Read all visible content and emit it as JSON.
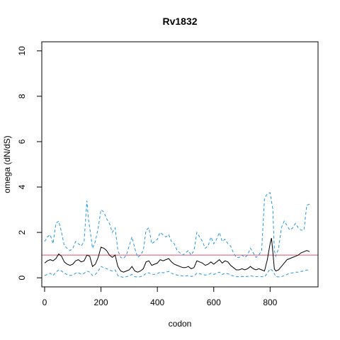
{
  "chart_data": {
    "type": "line",
    "title": "Rv1832",
    "xlabel": "codon",
    "ylabel": "omega (dN/dS)",
    "xlim": [
      -10,
      970
    ],
    "ylim": [
      -0.4,
      10.4
    ],
    "xticks": [
      0,
      200,
      400,
      600,
      800
    ],
    "yticks": [
      0,
      2,
      4,
      6,
      8,
      10
    ],
    "reference_line": {
      "y": 1,
      "color": "#DF536B"
    },
    "colors": {
      "estimate": "#000000",
      "interval": "#2297E6",
      "reference": "#DF536B"
    },
    "series": [
      {
        "style": "solid",
        "color": "#000000",
        "x": [
          0,
          10,
          20,
          30,
          40,
          50,
          60,
          70,
          80,
          90,
          100,
          110,
          120,
          130,
          140,
          150,
          160,
          170,
          180,
          190,
          200,
          210,
          220,
          230,
          240,
          250,
          260,
          270,
          280,
          290,
          300,
          310,
          320,
          330,
          340,
          350,
          360,
          370,
          380,
          390,
          400,
          410,
          420,
          430,
          440,
          450,
          460,
          470,
          480,
          490,
          500,
          510,
          520,
          530,
          540,
          550,
          560,
          570,
          580,
          590,
          600,
          610,
          620,
          630,
          640,
          650,
          660,
          670,
          680,
          690,
          700,
          710,
          720,
          730,
          740,
          750,
          760,
          770,
          780,
          790,
          800,
          805,
          810,
          815,
          820,
          830,
          840,
          850,
          860,
          870,
          880,
          890,
          900,
          910,
          920,
          930,
          940
        ],
        "values": [
          0.65,
          0.75,
          0.8,
          0.75,
          0.85,
          1.05,
          0.95,
          0.7,
          0.6,
          0.55,
          0.6,
          0.75,
          0.8,
          0.7,
          0.75,
          1.0,
          0.95,
          0.5,
          0.6,
          0.9,
          1.35,
          1.3,
          1.2,
          1.0,
          0.9,
          1.0,
          0.5,
          0.3,
          0.25,
          0.3,
          0.35,
          0.5,
          0.3,
          0.25,
          0.3,
          0.4,
          0.7,
          0.75,
          0.55,
          0.6,
          0.65,
          0.8,
          0.75,
          0.8,
          0.85,
          0.7,
          0.6,
          0.55,
          0.5,
          0.45,
          0.45,
          0.5,
          0.4,
          0.45,
          0.75,
          0.7,
          0.65,
          0.55,
          0.6,
          0.7,
          0.6,
          0.7,
          0.8,
          0.65,
          0.75,
          0.7,
          0.55,
          0.45,
          0.35,
          0.35,
          0.4,
          0.35,
          0.4,
          0.5,
          0.4,
          0.35,
          0.4,
          0.35,
          0.3,
          0.8,
          1.5,
          1.75,
          1.1,
          0.4,
          0.3,
          0.35,
          0.5,
          0.65,
          0.8,
          0.85,
          0.9,
          0.95,
          1.0,
          1.1,
          1.15,
          1.2,
          1.15
        ]
      },
      {
        "style": "dashed",
        "color": "#2297E6",
        "x": [
          0,
          10,
          20,
          30,
          40,
          50,
          60,
          70,
          80,
          90,
          100,
          110,
          120,
          130,
          140,
          150,
          155,
          160,
          170,
          180,
          190,
          200,
          210,
          220,
          230,
          240,
          250,
          260,
          270,
          280,
          290,
          300,
          310,
          320,
          330,
          340,
          350,
          360,
          370,
          380,
          390,
          400,
          410,
          420,
          430,
          440,
          450,
          460,
          470,
          480,
          490,
          500,
          510,
          520,
          530,
          540,
          550,
          560,
          570,
          580,
          590,
          600,
          610,
          620,
          630,
          640,
          650,
          660,
          670,
          680,
          690,
          700,
          710,
          720,
          730,
          740,
          750,
          760,
          770,
          780,
          790,
          800,
          810,
          815,
          820,
          830,
          840,
          850,
          860,
          870,
          880,
          890,
          900,
          910,
          920,
          930,
          940
        ],
        "values": [
          1.6,
          1.8,
          1.9,
          1.5,
          2.4,
          2.5,
          2.0,
          1.4,
          1.3,
          1.2,
          1.3,
          1.6,
          1.5,
          1.4,
          1.6,
          3.4,
          2.6,
          2.2,
          1.3,
          1.6,
          2.2,
          3.0,
          2.9,
          2.6,
          2.4,
          2.0,
          2.2,
          1.2,
          0.9,
          0.85,
          1.0,
          1.4,
          1.8,
          1.3,
          0.9,
          1.0,
          1.2,
          2.1,
          2.2,
          1.5,
          1.6,
          1.7,
          2.0,
          1.9,
          1.8,
          1.9,
          1.6,
          1.5,
          1.2,
          1.1,
          1.0,
          1.1,
          1.2,
          1.0,
          1.2,
          2.0,
          1.8,
          1.6,
          1.3,
          1.4,
          1.8,
          1.5,
          1.7,
          2.0,
          1.6,
          1.7,
          1.5,
          1.4,
          1.1,
          0.9,
          0.9,
          1.0,
          0.9,
          1.0,
          1.3,
          1.1,
          0.9,
          1.0,
          1.2,
          3.5,
          3.7,
          3.75,
          3.0,
          1.2,
          0.95,
          1.3,
          2.2,
          2.5,
          2.3,
          2.1,
          2.2,
          2.4,
          2.2,
          2.1,
          2.1,
          3.2,
          3.25
        ]
      },
      {
        "style": "dashed",
        "color": "#2297E6",
        "x": [
          0,
          10,
          20,
          30,
          40,
          50,
          60,
          70,
          80,
          90,
          100,
          110,
          120,
          130,
          140,
          150,
          160,
          170,
          180,
          190,
          200,
          210,
          220,
          230,
          240,
          250,
          260,
          270,
          280,
          290,
          300,
          310,
          320,
          330,
          340,
          350,
          360,
          370,
          380,
          390,
          400,
          410,
          420,
          430,
          440,
          450,
          460,
          470,
          480,
          490,
          500,
          510,
          520,
          530,
          540,
          550,
          560,
          570,
          580,
          590,
          600,
          610,
          620,
          630,
          640,
          650,
          660,
          670,
          680,
          690,
          700,
          710,
          720,
          730,
          740,
          750,
          760,
          770,
          780,
          790,
          800,
          810,
          820,
          830,
          840,
          850,
          860,
          870,
          880,
          890,
          900,
          910,
          920,
          930,
          940
        ],
        "values": [
          0.1,
          0.15,
          0.2,
          0.1,
          0.25,
          0.35,
          0.3,
          0.2,
          0.15,
          0.1,
          0.12,
          0.2,
          0.22,
          0.15,
          0.2,
          0.3,
          0.25,
          0.1,
          0.15,
          0.3,
          0.5,
          0.45,
          0.4,
          0.35,
          0.3,
          0.35,
          0.1,
          0.05,
          0.02,
          0.05,
          0.08,
          0.15,
          0.05,
          0.03,
          0.05,
          0.1,
          0.2,
          0.22,
          0.15,
          0.15,
          0.18,
          0.25,
          0.22,
          0.25,
          0.28,
          0.2,
          0.15,
          0.12,
          0.1,
          0.08,
          0.08,
          0.1,
          0.06,
          0.08,
          0.2,
          0.18,
          0.15,
          0.12,
          0.14,
          0.2,
          0.15,
          0.2,
          0.25,
          0.15,
          0.2,
          0.18,
          0.12,
          0.08,
          0.05,
          0.05,
          0.06,
          0.05,
          0.06,
          0.1,
          0.06,
          0.05,
          0.06,
          0.05,
          0.04,
          0.2,
          0.4,
          0.3,
          0.05,
          0.04,
          0.05,
          0.1,
          0.15,
          0.2,
          0.22,
          0.25,
          0.25,
          0.28,
          0.3,
          0.35,
          0.3
        ]
      }
    ]
  }
}
